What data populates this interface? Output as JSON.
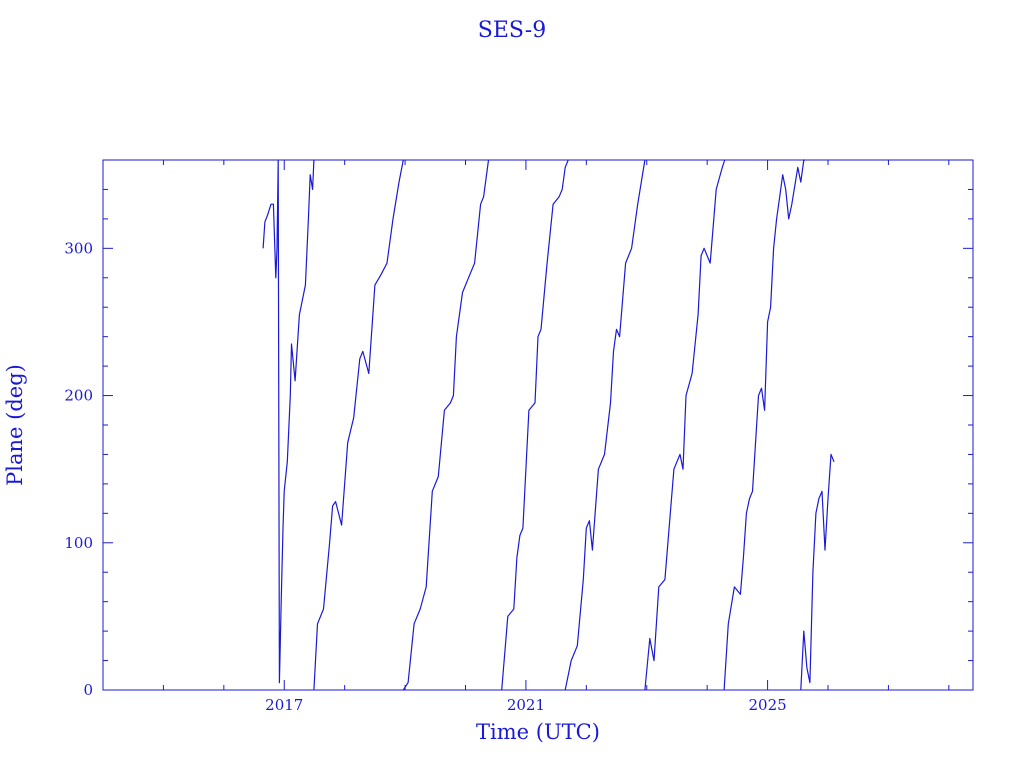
{
  "chart_data": {
    "type": "line",
    "title": "SES-9",
    "xlabel": "Time (UTC)",
    "ylabel": "Plane (deg)",
    "xlim": [
      2014.0,
      2028.4
    ],
    "ylim": [
      0,
      360
    ],
    "x_major_ticks": [
      2017,
      2021,
      2025
    ],
    "y_major_ticks": [
      0,
      100,
      200,
      300
    ],
    "x_tick_labels": [
      "2017",
      "2021",
      "2025"
    ],
    "y_tick_labels": [
      "0",
      "100",
      "200",
      "300"
    ],
    "grid": false,
    "legend": "none",
    "color": "#1a1ad6",
    "note_wrap": "values wrap from 360 back to 0",
    "series": [
      {
        "x": [
          2016.65,
          2016.68,
          2016.72,
          2016.78,
          2016.82,
          2016.86,
          2016.88,
          2016.9,
          2016.92,
          2016.95,
          2016.98,
          2017.0,
          2017.05,
          2017.1,
          2017.12,
          2017.18,
          2017.25,
          2017.3,
          2017.35,
          2017.4,
          2017.43,
          2017.47,
          2017.49
        ],
        "y": [
          300,
          318,
          322,
          330,
          330,
          280,
          300,
          360,
          5,
          60,
          110,
          135,
          155,
          200,
          235,
          210,
          255,
          265,
          275,
          320,
          350,
          340,
          360
        ]
      },
      {
        "x": [
          2017.49,
          2017.55,
          2017.65,
          2017.75,
          2017.8,
          2017.85,
          2017.95,
          2018.05,
          2018.15,
          2018.25,
          2018.3,
          2018.4,
          2018.5,
          2018.6,
          2018.7,
          2018.8,
          2018.9,
          2018.97
        ],
        "y": [
          0,
          45,
          55,
          100,
          125,
          128,
          112,
          168,
          185,
          225,
          230,
          215,
          275,
          282,
          290,
          320,
          345,
          360
        ]
      },
      {
        "x": [
          2018.97,
          2019.05,
          2019.15,
          2019.25,
          2019.35,
          2019.45,
          2019.5,
          2019.55,
          2019.65,
          2019.75,
          2019.8,
          2019.85,
          2019.95,
          2020.05,
          2020.15,
          2020.25,
          2020.3,
          2020.38
        ],
        "y": [
          0,
          5,
          45,
          55,
          70,
          135,
          140,
          145,
          190,
          195,
          200,
          240,
          270,
          280,
          290,
          330,
          335,
          360
        ]
      },
      {
        "x": [
          2020.6,
          2020.7,
          2020.8,
          2020.85,
          2020.9,
          2020.95,
          2021.05,
          2021.15,
          2021.2,
          2021.25,
          2021.35,
          2021.45,
          2021.55,
          2021.6,
          2021.65,
          2021.7
        ],
        "y": [
          0,
          50,
          55,
          90,
          105,
          110,
          190,
          195,
          240,
          245,
          290,
          330,
          335,
          340,
          355,
          360
        ]
      },
      {
        "x": [
          2021.65,
          2021.75,
          2021.85,
          2021.95,
          2022.0,
          2022.05,
          2022.1,
          2022.2,
          2022.3,
          2022.4,
          2022.45,
          2022.5,
          2022.55,
          2022.65,
          2022.75,
          2022.85,
          2022.97
        ],
        "y": [
          0,
          20,
          30,
          75,
          110,
          115,
          95,
          150,
          160,
          195,
          230,
          245,
          240,
          290,
          300,
          330,
          360
        ]
      },
      {
        "x": [
          2022.97,
          2023.05,
          2023.12,
          2023.2,
          2023.3,
          2023.35,
          2023.45,
          2023.55,
          2023.6,
          2023.65,
          2023.75,
          2023.85,
          2023.9,
          2023.95,
          2024.05,
          2024.15,
          2024.25,
          2024.29
        ],
        "y": [
          0,
          35,
          20,
          70,
          75,
          100,
          150,
          160,
          150,
          200,
          215,
          255,
          295,
          300,
          290,
          340,
          355,
          360
        ]
      },
      {
        "x": [
          2024.28,
          2024.35,
          2024.45,
          2024.55,
          2024.6,
          2024.65,
          2024.7,
          2024.75,
          2024.85,
          2024.9,
          2024.95,
          2025.0,
          2025.05,
          2025.1,
          2025.15,
          2025.2,
          2025.25,
          2025.3,
          2025.35,
          2025.4,
          2025.5,
          2025.55,
          2025.6,
          2025.62
        ],
        "y": [
          0,
          45,
          70,
          65,
          90,
          120,
          130,
          135,
          200,
          205,
          190,
          250,
          260,
          300,
          320,
          335,
          350,
          340,
          320,
          330,
          355,
          345,
          360,
          360
        ]
      },
      {
        "x": [
          2025.55,
          2025.6,
          2025.65,
          2025.7,
          2025.75,
          2025.8,
          2025.85,
          2025.9,
          2025.95,
          2026.0,
          2026.05,
          2026.1
        ],
        "y": [
          0,
          40,
          15,
          5,
          80,
          120,
          130,
          135,
          95,
          130,
          160,
          155
        ]
      }
    ]
  }
}
